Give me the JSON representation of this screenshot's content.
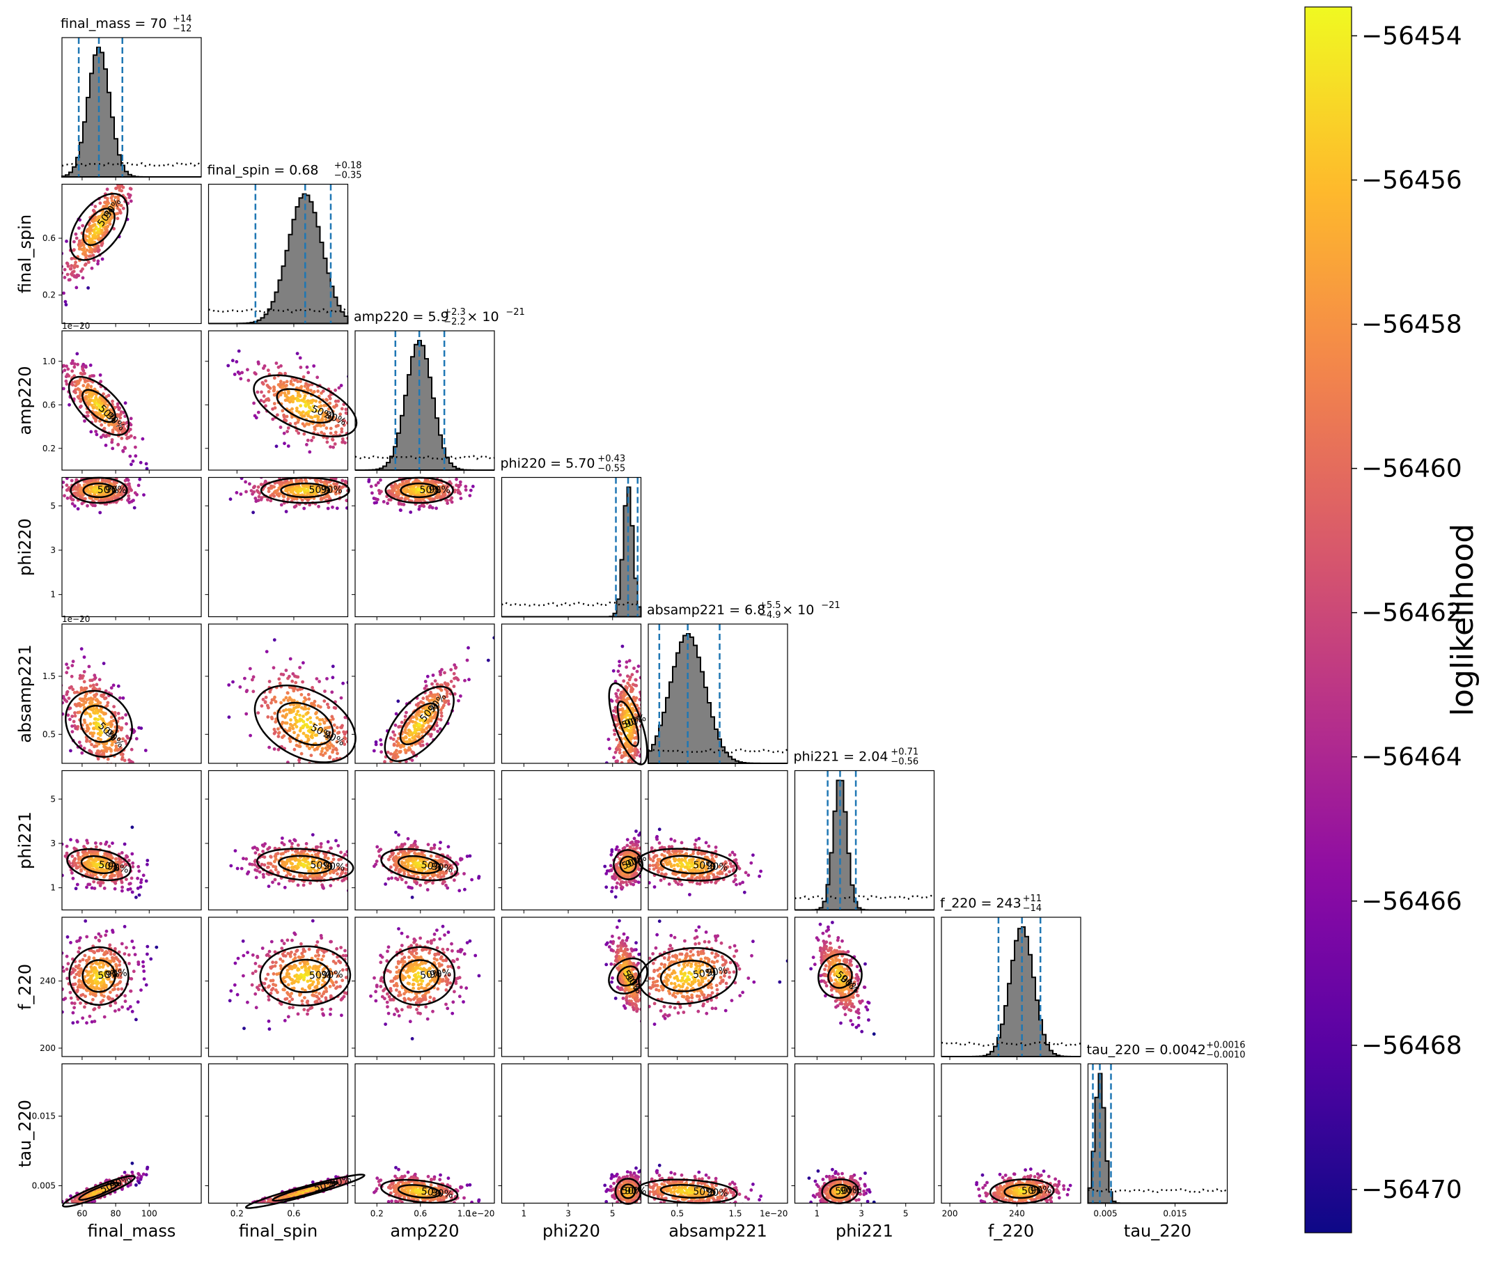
{
  "chart_data": {
    "type": "scatter",
    "kind": "corner-plot",
    "parameters": [
      {
        "name": "final_mass",
        "title_main": "final_mass = 70",
        "title_exp": "",
        "title_sup": "+14",
        "title_sub": "−12",
        "ticks": [
          {
            "v": 60,
            "t": "60"
          },
          {
            "v": 80,
            "t": "80"
          },
          {
            "v": 100,
            "t": "100"
          }
        ],
        "range": [
          48,
          131
        ],
        "median": 70,
        "lo": 58,
        "hi": 84,
        "sigma": 6.5
      },
      {
        "name": "final_spin",
        "title_main": "final_spin = 0.68",
        "title_exp": "",
        "title_sup": "+0.18",
        "title_sub": "−0.35",
        "ticks": [
          {
            "v": 0.2,
            "t": "0.2"
          },
          {
            "v": 0.6,
            "t": "0.6"
          }
        ],
        "range": [
          0.0,
          0.98
        ],
        "median": 0.68,
        "lo": 0.33,
        "hi": 0.86,
        "sigma": 0.12
      },
      {
        "name": "amp220",
        "title_main": "amp220 = 5.9",
        "title_exp": " × 10",
        "title_expsup": "−21",
        "title_sup": "+2.3",
        "title_sub": "−2.2",
        "ticks": [
          {
            "v": 0.2,
            "t": "0.2"
          },
          {
            "v": 0.6,
            "t": "0.6"
          },
          {
            "v": 1.0,
            "t": "1.0"
          }
        ],
        "tick_offset": "1e−20",
        "range": [
          0.0,
          1.28
        ],
        "median": 0.59,
        "lo": 0.37,
        "hi": 0.82,
        "sigma": 0.12
      },
      {
        "name": "phi220",
        "title_main": "phi220 = 5.70",
        "title_exp": "",
        "title_sup": "+0.43",
        "title_sub": "−0.55",
        "ticks": [
          {
            "v": 1,
            "t": "1"
          },
          {
            "v": 3,
            "t": "3"
          },
          {
            "v": 5,
            "t": "5"
          }
        ],
        "range": [
          0.0,
          6.28
        ],
        "median": 5.7,
        "lo": 5.15,
        "hi": 6.13,
        "sigma": 0.22
      },
      {
        "name": "absamp221",
        "title_main": "absamp221 = 6.8",
        "title_exp": " × 10",
        "title_expsup": "−21",
        "title_sup": "+5.5",
        "title_sub": "−4.9",
        "ticks": [
          {
            "v": 0.5,
            "t": "0.5"
          },
          {
            "v": 1.5,
            "t": "1.5"
          }
        ],
        "tick_offset": "1e−20",
        "range": [
          0.0,
          2.4
        ],
        "median": 0.68,
        "lo": 0.19,
        "hi": 1.23,
        "sigma": 0.3
      },
      {
        "name": "phi221",
        "title_main": "phi221 = 2.04",
        "title_exp": "",
        "title_sup": "+0.71",
        "title_sub": "−0.56",
        "ticks": [
          {
            "v": 1,
            "t": "1"
          },
          {
            "v": 3,
            "t": "3"
          },
          {
            "v": 5,
            "t": "5"
          }
        ],
        "range": [
          0.0,
          6.28
        ],
        "median": 2.04,
        "lo": 1.48,
        "hi": 2.75,
        "sigma": 0.3
      },
      {
        "name": "f_220",
        "title_main": "f_220 = 243",
        "title_exp": "",
        "title_sup": "+11",
        "title_sub": "−14",
        "ticks": [
          {
            "v": 200,
            "t": "200"
          },
          {
            "v": 240,
            "t": "240"
          }
        ],
        "range": [
          195,
          278
        ],
        "median": 243,
        "lo": 229,
        "hi": 254,
        "sigma": 7
      },
      {
        "name": "tau_220",
        "title_main": "tau_220 = 0.0042",
        "title_exp": "",
        "title_sup": "+0.0016",
        "title_sub": "−0.0010",
        "ticks": [
          {
            "v": 0.005,
            "t": "0.005"
          },
          {
            "v": 0.015,
            "t": "0.015"
          }
        ],
        "range": [
          0.0025,
          0.0225
        ],
        "median": 0.0042,
        "lo": 0.0032,
        "hi": 0.0058,
        "sigma": 0.0007
      }
    ],
    "contour_levels": [
      "50%",
      "90%"
    ],
    "colorbar": {
      "label": "loglikelihood",
      "range": [
        -56470.6,
        -56453.6
      ],
      "ticks": [
        -56454,
        -56456,
        -56458,
        -56460,
        -56462,
        -56464,
        -56466,
        -56468,
        -56470
      ],
      "tick_labels": [
        "−56454",
        "−56456",
        "−56458",
        "−56460",
        "−56462",
        "−56464",
        "−56466",
        "−56468",
        "−56470"
      ],
      "colormap": "plasma"
    },
    "colors": {
      "histogram_fill": "#808080",
      "quantile_lines": "#1f77b4",
      "contour": "#000000",
      "prior": "#000000"
    },
    "grid": false
  }
}
